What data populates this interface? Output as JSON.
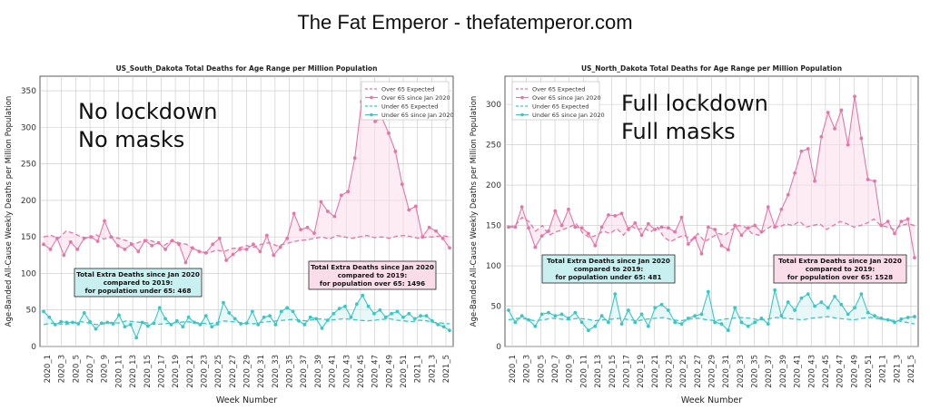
{
  "page_title": "The Fat Emperor - thefatemperor.com",
  "colors": {
    "over65": "#e377a8",
    "under65": "#3cc6c4",
    "over65_fill": "#fbdde9",
    "under65_fill": "#d5f3f2"
  },
  "chart_data": [
    {
      "type": "line",
      "title": "US_South_Dakota Total Deaths for Age Range per Million Population",
      "xlabel": "Week Number",
      "ylabel": "Age-Banded All-Cause Weekly Deaths per Million Population",
      "ylim": [
        0,
        370
      ],
      "yticks": [
        0,
        50,
        100,
        150,
        200,
        250,
        300,
        350
      ],
      "grid": true,
      "legend_position": "top-right",
      "overlay_text": [
        "No lockdown",
        "No masks"
      ],
      "tick_labels": [
        "2020_1",
        "2020_3",
        "2020_5",
        "2020_7",
        "2020_9",
        "2020_11",
        "2020_13",
        "2020_15",
        "2020_17",
        "2020_19",
        "2020_21",
        "2020_23",
        "2020_25",
        "2020_27",
        "2020_29",
        "2020_31",
        "2020_33",
        "2020_35",
        "2020_37",
        "2020_39",
        "2020_41",
        "2020_43",
        "2020_45",
        "2020_47",
        "2020_49",
        "2020_51",
        "2021_1",
        "2021_3",
        "2021_5"
      ],
      "series": [
        {
          "name": "Over 65 Expected",
          "style": "dashed",
          "color": "#e377a8",
          "values": [
            150,
            152,
            148,
            158,
            155,
            150,
            148,
            153,
            147,
            150,
            148,
            145,
            140,
            144,
            146,
            142,
            138,
            145,
            142,
            140,
            133,
            130,
            128,
            132,
            130,
            134,
            135,
            138,
            136,
            140,
            142,
            138,
            140,
            143,
            145,
            146,
            148,
            150,
            147,
            152,
            150,
            148,
            150,
            152,
            149,
            150,
            148,
            151,
            152,
            150,
            148,
            150,
            150,
            152,
            150
          ]
        },
        {
          "name": "Over 65 since Jan 2020",
          "style": "solid-marker",
          "color": "#e377a8",
          "values": [
            140,
            133,
            148,
            125,
            143,
            133,
            148,
            150,
            144,
            172,
            150,
            138,
            133,
            140,
            130,
            145,
            138,
            142,
            133,
            145,
            140,
            115,
            135,
            130,
            128,
            140,
            148,
            118,
            126,
            133,
            133,
            140,
            130,
            152,
            125,
            136,
            148,
            182,
            160,
            163,
            155,
            198,
            185,
            178,
            207,
            212,
            258,
            335,
            337,
            308,
            313,
            292,
            267,
            222,
            187,
            192,
            150,
            163,
            158,
            148,
            135
          ]
        },
        {
          "name": "Under 65 Expected",
          "style": "dashed",
          "color": "#3cc6c4",
          "values": [
            30,
            32,
            31,
            30,
            33,
            34,
            32,
            30,
            31,
            33,
            32,
            35,
            34,
            33,
            32,
            30,
            31,
            32,
            33,
            34,
            33,
            32,
            31,
            33,
            35,
            34,
            33,
            32,
            31,
            33,
            34,
            35,
            36,
            37,
            36,
            35,
            37,
            38,
            36,
            37,
            38,
            37,
            36,
            35,
            36,
            37,
            38,
            36,
            35,
            34,
            36,
            35,
            33,
            32,
            31
          ]
        },
        {
          "name": "Under 65 since Jan 2020",
          "style": "solid-marker",
          "color": "#3cc6c4",
          "values": [
            48,
            40,
            30,
            34,
            33,
            33,
            31,
            46,
            34,
            24,
            32,
            33,
            31,
            43,
            27,
            30,
            12,
            33,
            28,
            32,
            53,
            38,
            30,
            35,
            27,
            40,
            33,
            30,
            42,
            27,
            31,
            60,
            46,
            38,
            31,
            32,
            48,
            30,
            40,
            42,
            30,
            48,
            53,
            48,
            35,
            30,
            40,
            38,
            25,
            36,
            45,
            52,
            55,
            40,
            58,
            70,
            55,
            45,
            50,
            40,
            45,
            48,
            40,
            45,
            38,
            42,
            42,
            35,
            30,
            27,
            22
          ]
        }
      ],
      "annotations": [
        {
          "lines": [
            "Total Extra Deaths since Jan 2020",
            "compared to 2019:",
            "for population under 65: 468"
          ],
          "box_color": "#c9f0f1"
        },
        {
          "lines": [
            "Total Extra Deaths since Jan 2020",
            "compared to 2019:",
            "for population over 65: 1496"
          ],
          "box_color": "#fbdde9"
        }
      ]
    },
    {
      "type": "line",
      "title": "US_North_Dakota Total Deaths for Age Range per Million Population",
      "xlabel": "Week Number",
      "ylabel": "Age-Banded All-Cause Weekly Deaths per Million Population",
      "ylim": [
        0,
        335
      ],
      "yticks": [
        0,
        50,
        100,
        150,
        200,
        250,
        300
      ],
      "grid": true,
      "legend_position": "top-left",
      "overlay_text": [
        "Full lockdown",
        "Full masks"
      ],
      "tick_labels": [
        "2020_1",
        "2020_3",
        "2020_5",
        "2020_7",
        "2020_9",
        "2020_11",
        "2020_13",
        "2020_15",
        "2020_17",
        "2020_19",
        "2020_21",
        "2020_23",
        "2020_25",
        "2020_27",
        "2020_29",
        "2020_31",
        "2020_33",
        "2020_35",
        "2020_37",
        "2020_39",
        "2020_41",
        "2020_43",
        "2020_45",
        "2020_47",
        "2020_49",
        "2020_51",
        "2021_1",
        "2021_3",
        "2021_5"
      ],
      "series": [
        {
          "name": "Over 65 Expected",
          "style": "dashed",
          "color": "#e377a8",
          "values": [
            148,
            150,
            160,
            155,
            143,
            150,
            138,
            142,
            145,
            148,
            152,
            140,
            135,
            138,
            143,
            140,
            146,
            138,
            150,
            145,
            147,
            142,
            148,
            135,
            130,
            135,
            138,
            132,
            140,
            130,
            135,
            140,
            138,
            145,
            150,
            148,
            140,
            138,
            145,
            150,
            148,
            152,
            150,
            155,
            148,
            150,
            152,
            145,
            150,
            155,
            152,
            148,
            150,
            153,
            158,
            150,
            148,
            145,
            150,
            152,
            150
          ]
        },
        {
          "name": "Over 65 since Jan 2020",
          "style": "solid-marker",
          "color": "#e377a8",
          "values": [
            148,
            148,
            173,
            147,
            123,
            137,
            143,
            168,
            150,
            170,
            148,
            147,
            140,
            125,
            148,
            163,
            162,
            165,
            145,
            153,
            138,
            152,
            145,
            148,
            147,
            142,
            160,
            127,
            135,
            115,
            148,
            145,
            125,
            120,
            150,
            138,
            147,
            150,
            142,
            173,
            148,
            170,
            188,
            215,
            242,
            245,
            205,
            260,
            290,
            270,
            293,
            250,
            310,
            258,
            207,
            205,
            150,
            155,
            140,
            155,
            158,
            110
          ]
        },
        {
          "name": "Under 65 Expected",
          "style": "dashed",
          "color": "#3cc6c4",
          "values": [
            33,
            35,
            34,
            32,
            33,
            35,
            34,
            33,
            35,
            34,
            32,
            33,
            34,
            35,
            33,
            32,
            34,
            35,
            36,
            33,
            32,
            34,
            35,
            33,
            32,
            34,
            35,
            36,
            35,
            33,
            34,
            36,
            35,
            34,
            33,
            35,
            36,
            37,
            35,
            34,
            33,
            35,
            36,
            34,
            33,
            32,
            30,
            28
          ]
        },
        {
          "name": "Under 65 since Jan 2020",
          "style": "solid-marker",
          "color": "#3cc6c4",
          "values": [
            45,
            30,
            38,
            33,
            25,
            40,
            42,
            38,
            40,
            35,
            42,
            30,
            20,
            25,
            38,
            30,
            65,
            28,
            45,
            30,
            40,
            25,
            48,
            52,
            45,
            30,
            28,
            35,
            38,
            40,
            68,
            30,
            28,
            20,
            48,
            30,
            25,
            30,
            35,
            28,
            70,
            38,
            55,
            45,
            60,
            65,
            50,
            55,
            48,
            62,
            52,
            40,
            48,
            65,
            42,
            38,
            35,
            33,
            30,
            34,
            36,
            37
          ]
        }
      ],
      "annotations": [
        {
          "lines": [
            "Total Extra Deaths since Jan 2020",
            "compared to 2019:",
            "for population under 65: 481"
          ],
          "box_color": "#c9f0f1"
        },
        {
          "lines": [
            "Total Extra Deaths since Jan 2020",
            "compared to 2019:",
            "for population over 65: 1528"
          ],
          "box_color": "#fbdde9"
        }
      ]
    }
  ]
}
